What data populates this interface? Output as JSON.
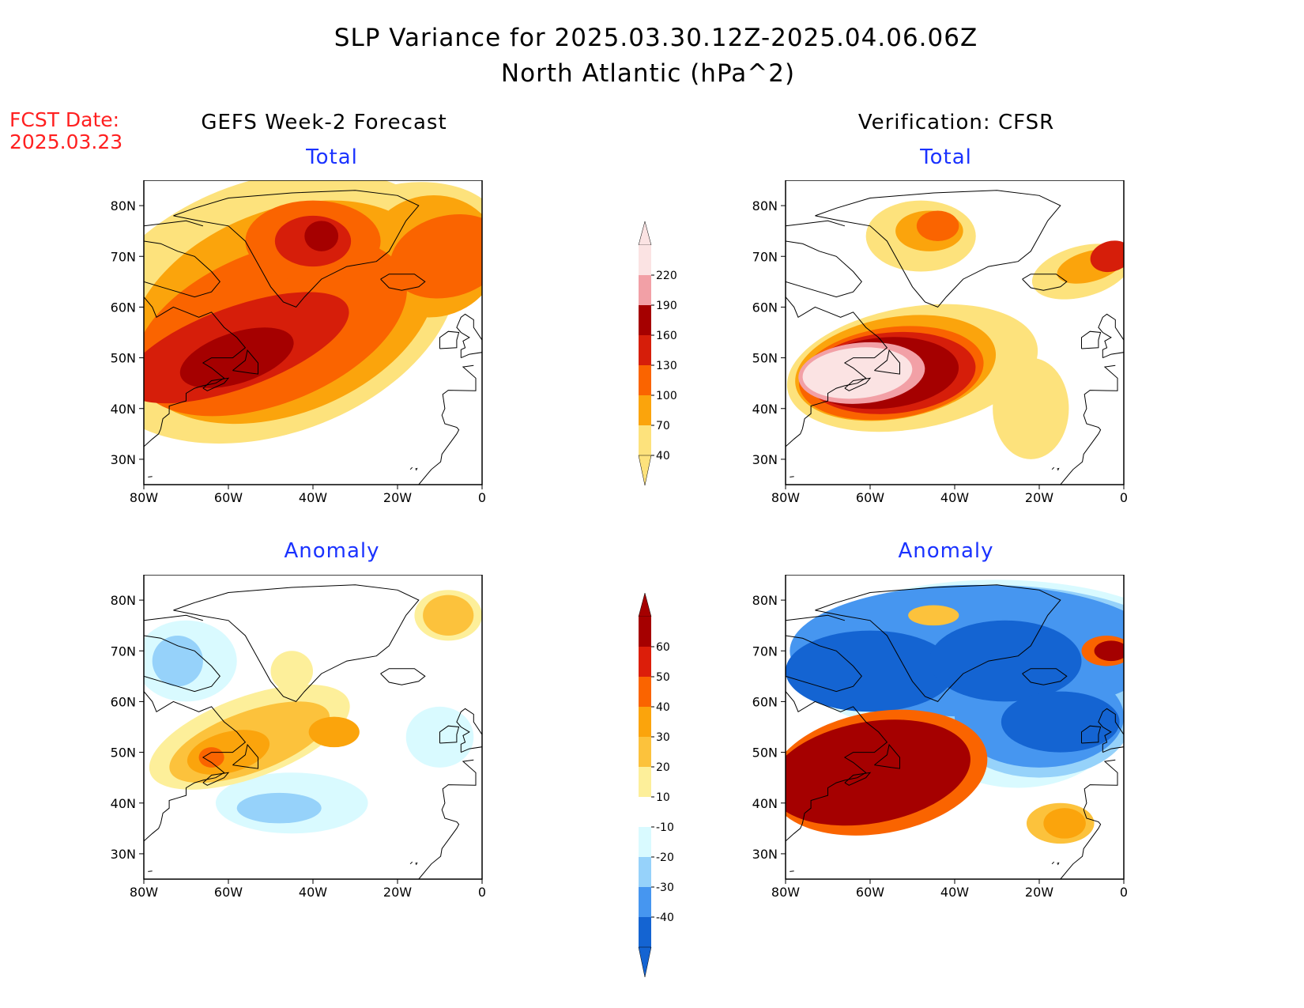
{
  "title": {
    "line1": "SLP Variance for 2025.03.30.12Z-2025.04.06.06Z",
    "line2": "North Atlantic (hPa^2)"
  },
  "fcst": {
    "label": "FCST Date:",
    "date": "2025.03.23"
  },
  "columns": {
    "left": "GEFS Week-2 Forecast",
    "right": "Verification: CFSR"
  },
  "panels": {
    "top_left_title": "Total",
    "top_right_title": "Total",
    "bottom_left_title": "Anomaly",
    "bottom_right_title": "Anomaly"
  },
  "axes": {
    "lat_ticks": [
      "80N",
      "70N",
      "60N",
      "50N",
      "40N",
      "30N"
    ],
    "lon_ticks": [
      "80W",
      "60W",
      "40W",
      "20W",
      "0"
    ]
  },
  "colorbar_total": {
    "labels": [
      "220",
      "190",
      "160",
      "130",
      "100",
      "70",
      "40"
    ],
    "colors": [
      "#fbe3e3",
      "#f2a0a6",
      "#a50000",
      "#d61e0a",
      "#fa6400",
      "#fba40c",
      "#fde27c"
    ]
  },
  "colorbar_anomaly": {
    "labels": [
      "60",
      "50",
      "40",
      "30",
      "20",
      "10",
      "-10",
      "-20",
      "-30",
      "-40"
    ],
    "colors": [
      "#a50000",
      "#dc1e0a",
      "#fa6400",
      "#fba40c",
      "#fcc23c",
      "#fdef9a",
      "#ffffff",
      "#d9faff",
      "#96d2fa",
      "#4696f0",
      "#1464d2"
    ]
  },
  "palette": {
    "t40": "#fde27c",
    "t70": "#fba40c",
    "t100": "#fa6400",
    "t130": "#d61e0a",
    "t160": "#a50000",
    "t190": "#f2a0a6",
    "t220": "#fbe3e3",
    "a10": "#fdef9a",
    "a20": "#fcc23c",
    "a30": "#fba40c",
    "a40": "#fa6400",
    "a60": "#a50000",
    "n10": "#d9faff",
    "n20": "#96d2fa",
    "n30": "#4696f0",
    "n40": "#1464d2",
    "coast": "#000000"
  }
}
